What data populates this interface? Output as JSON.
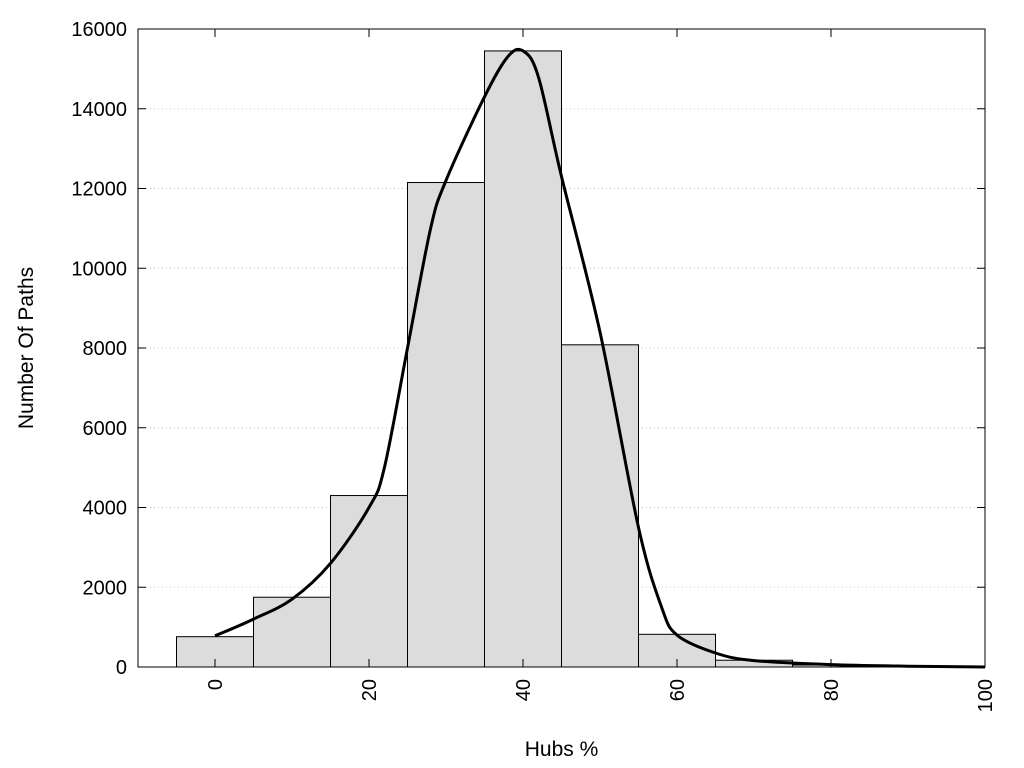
{
  "chart_data": {
    "type": "bar",
    "title": "",
    "xlabel": "Hubs %",
    "ylabel": "Number Of Paths",
    "xlim": [
      -10,
      100
    ],
    "ylim": [
      0,
      16000
    ],
    "x_ticks": [
      0,
      20,
      40,
      60,
      80,
      100
    ],
    "y_ticks": [
      0,
      2000,
      4000,
      6000,
      8000,
      10000,
      12000,
      14000,
      16000
    ],
    "grid": "horizontal dotted",
    "bin_width": 10,
    "bins": [
      {
        "center": 0,
        "value": 760
      },
      {
        "center": 10,
        "value": 1750
      },
      {
        "center": 20,
        "value": 4300
      },
      {
        "center": 30,
        "value": 12150
      },
      {
        "center": 40,
        "value": 15450
      },
      {
        "center": 50,
        "value": 8080
      },
      {
        "center": 60,
        "value": 820
      },
      {
        "center": 70,
        "value": 170
      },
      {
        "center": 80,
        "value": 50
      },
      {
        "center": 90,
        "value": 10
      },
      {
        "center": 100,
        "value": 0
      }
    ],
    "curve": {
      "type": "line",
      "x": [
        0,
        5,
        10,
        15,
        20,
        22,
        25,
        28,
        30,
        35,
        38,
        40,
        42,
        45,
        50,
        55,
        58,
        60,
        65,
        70,
        80,
        90,
        100
      ],
      "y": [
        780,
        1200,
        1700,
        2600,
        4000,
        5000,
        8000,
        11000,
        12200,
        14300,
        15300,
        15450,
        14800,
        12300,
        8400,
        3500,
        1500,
        800,
        350,
        160,
        60,
        20,
        0
      ]
    },
    "colors": {
      "bar_fill": "#dcdcdc",
      "bar_stroke": "#000000",
      "line": "#000000",
      "grid": "#c8c8c8"
    }
  }
}
